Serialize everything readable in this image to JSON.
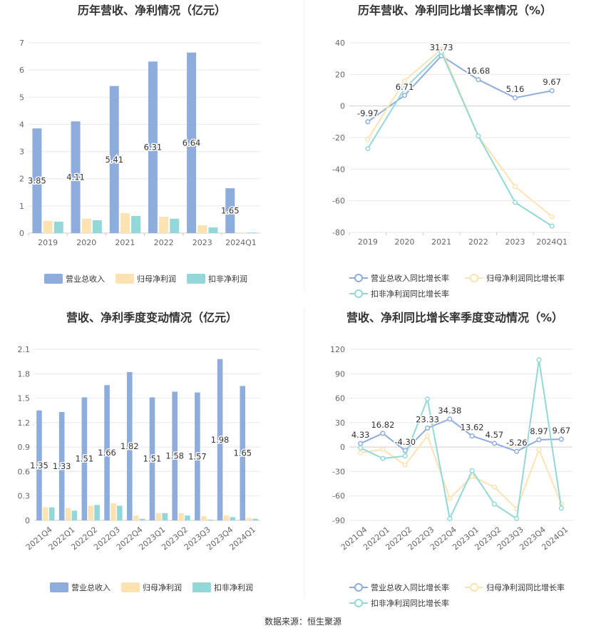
{
  "source": "数据来源：恒生聚源",
  "colors": {
    "rev": "#8eaddc",
    "net": "#fde2b2",
    "deduct": "#93d8d8",
    "axis": "#999999",
    "grid": "#e8e8e8"
  },
  "chart_data": [
    {
      "type": "bar",
      "title": "历年营收、净利情况（亿元）",
      "categories": [
        "2019",
        "2020",
        "2021",
        "2022",
        "2023",
        "2024Q1"
      ],
      "ylim": [
        0,
        7
      ],
      "yticks": [
        0,
        1,
        2,
        3,
        4,
        5,
        6,
        7
      ],
      "series": [
        {
          "name": "营业总收入",
          "values": [
            3.85,
            4.11,
            5.41,
            6.31,
            6.64,
            1.65
          ],
          "labels": [
            "3.85",
            "4.11",
            "5.41",
            "6.31",
            "6.64",
            "1.65"
          ]
        },
        {
          "name": "归母净利润",
          "values": [
            0.45,
            0.53,
            0.73,
            0.6,
            0.29,
            0.02
          ]
        },
        {
          "name": "扣非净利润",
          "values": [
            0.42,
            0.47,
            0.63,
            0.53,
            0.21,
            0.02
          ]
        }
      ]
    },
    {
      "type": "line",
      "title": "历年营收、净利同比增长率情况（%）",
      "categories": [
        "2019",
        "2020",
        "2021",
        "2022",
        "2023",
        "2024Q1"
      ],
      "ylim": [
        -80,
        40
      ],
      "yticks": [
        -80,
        -60,
        -40,
        -20,
        0,
        20,
        40
      ],
      "series": [
        {
          "name": "营业总收入同比增长率",
          "values": [
            -9.97,
            6.71,
            31.73,
            16.68,
            5.16,
            9.67
          ],
          "labels": [
            "-9.97",
            "6.71",
            "31.73",
            "16.68",
            "5.16",
            "9.67"
          ]
        },
        {
          "name": "归母净利润同比增长率",
          "values": [
            -21,
            16,
            36,
            -19,
            -51,
            -70
          ]
        },
        {
          "name": "扣非净利润同比增长率",
          "values": [
            -27,
            11,
            34,
            -19,
            -61,
            -76
          ]
        }
      ]
    },
    {
      "type": "bar",
      "title": "营收、净利季度变动情况（亿元）",
      "categories": [
        "2021Q4",
        "2022Q1",
        "2022Q2",
        "2022Q3",
        "2022Q4",
        "2023Q1",
        "2023Q2",
        "2023Q3",
        "2023Q4",
        "2024Q1"
      ],
      "ylim": [
        0,
        2.1
      ],
      "yticks": [
        0,
        0.3,
        0.6,
        0.9,
        1.2,
        1.5,
        1.8,
        2.1
      ],
      "series": [
        {
          "name": "营业总收入",
          "values": [
            1.35,
            1.33,
            1.51,
            1.66,
            1.82,
            1.51,
            1.58,
            1.57,
            1.98,
            1.65
          ],
          "labels": [
            "1.35",
            "1.33",
            "1.51",
            "1.66",
            "1.82",
            "1.51",
            "1.58",
            "1.57",
            "1.98",
            "1.65"
          ]
        },
        {
          "name": "归母净利润",
          "values": [
            0.16,
            0.15,
            0.18,
            0.21,
            0.06,
            0.09,
            0.09,
            0.05,
            0.06,
            0.03
          ]
        },
        {
          "name": "扣非净利润",
          "values": [
            0.16,
            0.12,
            0.19,
            0.18,
            0.02,
            0.09,
            0.06,
            0.01,
            0.04,
            0.02
          ]
        }
      ]
    },
    {
      "type": "line",
      "title": "营收、净利同比增长率季度变动情况（%）",
      "categories": [
        "2021Q4",
        "2022Q1",
        "2022Q2",
        "2022Q3",
        "2022Q4",
        "2023Q1",
        "2023Q2",
        "2023Q3",
        "2023Q4",
        "2024Q1"
      ],
      "ylim": [
        -90,
        120
      ],
      "yticks": [
        -90,
        -60,
        -30,
        0,
        30,
        60,
        90,
        120
      ],
      "series": [
        {
          "name": "营业总收入同比增长率",
          "values": [
            4.33,
            16.82,
            -4.3,
            23.33,
            34.38,
            13.62,
            4.57,
            -5.26,
            8.97,
            9.67
          ],
          "labels": [
            "4.33",
            "16.82",
            "-4.30",
            "23.33",
            "34.38",
            "13.62",
            "4.57",
            "-5.26",
            "8.97",
            "9.67"
          ]
        },
        {
          "name": "归母净利润同比增长率",
          "values": [
            -7,
            -3,
            -22,
            14,
            -63,
            -36,
            -49,
            -76,
            -3,
            -70
          ]
        },
        {
          "name": "扣非净利润同比增长率",
          "values": [
            -1,
            -14,
            -11,
            59,
            -88,
            -29,
            -70,
            -88,
            107,
            -75
          ]
        }
      ]
    }
  ]
}
